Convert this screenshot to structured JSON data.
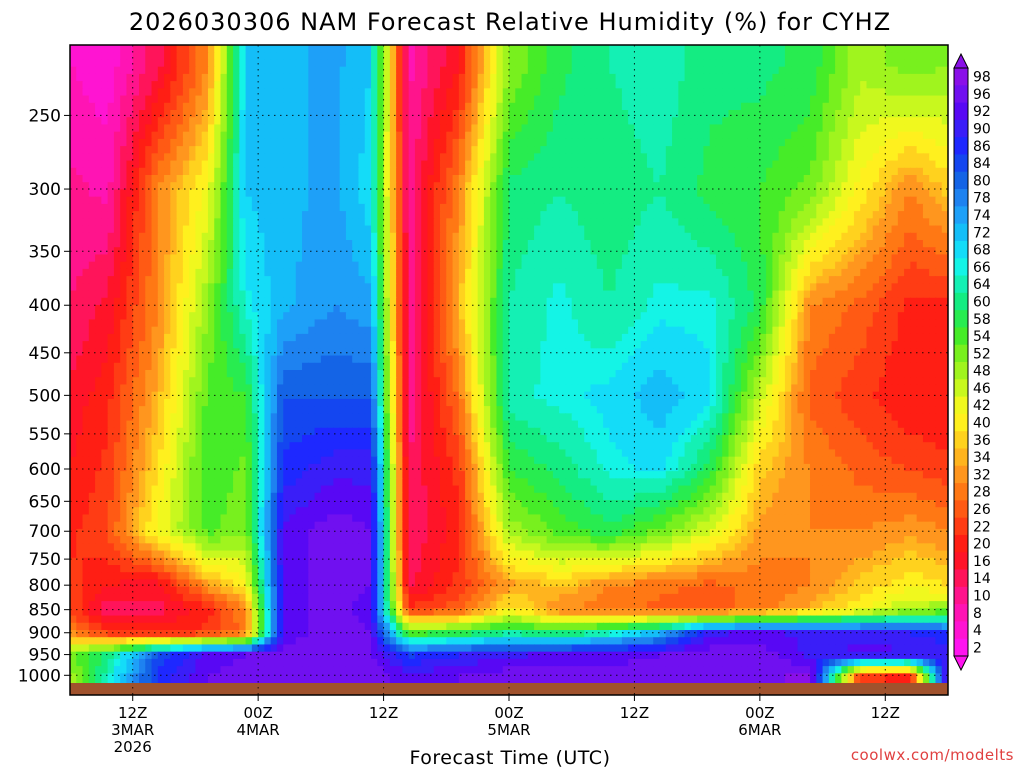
{
  "chart_data": {
    "type": "heatmap",
    "title": "2026030306 NAM Forecast Relative Humidity (%) for CYHZ",
    "xlabel": "Forecast Time (UTC)",
    "ylabel": "",
    "credit": "coolwx.com/modelts",
    "y_axis": {
      "scale": "pressure-log",
      "range": [
        1050,
        210
      ],
      "tick_labels": [
        "250",
        "300",
        "350",
        "400",
        "450",
        "500",
        "550",
        "600",
        "650",
        "700",
        "750",
        "800",
        "850",
        "900",
        "950",
        "1000"
      ],
      "ticks": [
        250,
        300,
        350,
        400,
        450,
        500,
        550,
        600,
        650,
        700,
        750,
        800,
        850,
        900,
        950,
        1000
      ]
    },
    "x_axis": {
      "range_hours": [
        -5,
        65
      ],
      "ticks": [
        {
          "hour": 0,
          "lines": [
            "12Z",
            "3MAR",
            "2026"
          ]
        },
        {
          "hour": 10,
          "lines": [
            "00Z",
            "4MAR"
          ]
        },
        {
          "hour": 20,
          "lines": [
            "12Z"
          ]
        },
        {
          "hour": 30,
          "lines": [
            "00Z",
            "5MAR"
          ]
        },
        {
          "hour": 40,
          "lines": [
            "12Z"
          ]
        },
        {
          "hour": 50,
          "lines": [
            "00Z",
            "6MAR"
          ]
        },
        {
          "hour": 60,
          "lines": [
            "12Z"
          ]
        }
      ]
    },
    "colorbar": {
      "labels": [
        "98",
        "96",
        "92",
        "90",
        "86",
        "84",
        "80",
        "78",
        "74",
        "72",
        "68",
        "66",
        "64",
        "60",
        "58",
        "54",
        "52",
        "48",
        "46",
        "42",
        "40",
        "36",
        "34",
        "32",
        "28",
        "26",
        "22",
        "20",
        "16",
        "14",
        "10",
        "8",
        "4",
        "2"
      ],
      "colors": [
        "#8a10e8",
        "#7010f0",
        "#5808f4",
        "#3a1ef8",
        "#1e28ff",
        "#1446f0",
        "#1464e6",
        "#1e82f0",
        "#1ea0f8",
        "#14bef8",
        "#14dcf8",
        "#14f4e6",
        "#14f0b4",
        "#14ec82",
        "#28ec50",
        "#46ec28",
        "#78f01e",
        "#a0f41e",
        "#c8f81e",
        "#f0f81e",
        "#fff01e",
        "#ffd21e",
        "#ffb41e",
        "#ff961e",
        "#ff7814",
        "#ff5a14",
        "#ff3c14",
        "#ff1e14",
        "#ff1428",
        "#ff145a",
        "#ff148c",
        "#ff14b4",
        "#ff14d2",
        "#ff14f0"
      ]
    },
    "rh_fields": {
      "note": "Approximate RH % by forecast hour and pressure level, read from contour colours",
      "hours": [
        -5,
        -2,
        2,
        6,
        9,
        12,
        16,
        19,
        22,
        26,
        30,
        34,
        38,
        42,
        46,
        50,
        54,
        58,
        62,
        65
      ],
      "levels_hpa": [
        220,
        300,
        400,
        500,
        600,
        700,
        800,
        850,
        900,
        950,
        1000
      ],
      "grid": [
        [
          6,
          4,
          14,
          30,
          70,
          72,
          74,
          70,
          8,
          18,
          50,
          58,
          62,
          64,
          60,
          60,
          58,
          48,
          52,
          50
        ],
        [
          10,
          8,
          30,
          42,
          70,
          72,
          74,
          68,
          10,
          30,
          60,
          62,
          60,
          62,
          58,
          56,
          52,
          40,
          30,
          36
        ],
        [
          12,
          16,
          30,
          50,
          66,
          72,
          76,
          74,
          10,
          34,
          62,
          66,
          62,
          66,
          66,
          58,
          30,
          26,
          20,
          20
        ],
        [
          16,
          20,
          34,
          54,
          56,
          82,
          82,
          82,
          10,
          28,
          64,
          66,
          68,
          72,
          68,
          46,
          26,
          22,
          18,
          18
        ],
        [
          18,
          22,
          38,
          56,
          52,
          86,
          90,
          90,
          12,
          22,
          56,
          60,
          66,
          68,
          58,
          36,
          30,
          26,
          24,
          22
        ],
        [
          20,
          24,
          42,
          54,
          50,
          92,
          96,
          94,
          12,
          20,
          48,
          54,
          58,
          52,
          44,
          32,
          30,
          30,
          32,
          30
        ],
        [
          22,
          18,
          16,
          32,
          40,
          92,
          96,
          94,
          14,
          22,
          32,
          36,
          30,
          28,
          26,
          28,
          30,
          36,
          40,
          38
        ],
        [
          24,
          12,
          14,
          20,
          30,
          92,
          96,
          92,
          22,
          26,
          40,
          30,
          28,
          26,
          26,
          28,
          34,
          40,
          48,
          50
        ],
        [
          30,
          22,
          20,
          22,
          28,
          92,
          96,
          94,
          54,
          56,
          62,
          58,
          64,
          72,
          90,
          92,
          90,
          90,
          88,
          86
        ],
        [
          52,
          60,
          82,
          92,
          94,
          96,
          96,
          94,
          84,
          88,
          90,
          92,
          92,
          94,
          96,
          96,
          90,
          92,
          92,
          90
        ],
        [
          48,
          64,
          86,
          94,
          96,
          96,
          96,
          96,
          92,
          94,
          96,
          96,
          96,
          96,
          96,
          96,
          98,
          22,
          20,
          96
        ]
      ]
    },
    "terrain_color": "#a0522d",
    "frame_color": "#000000",
    "background": "#ffffff"
  }
}
